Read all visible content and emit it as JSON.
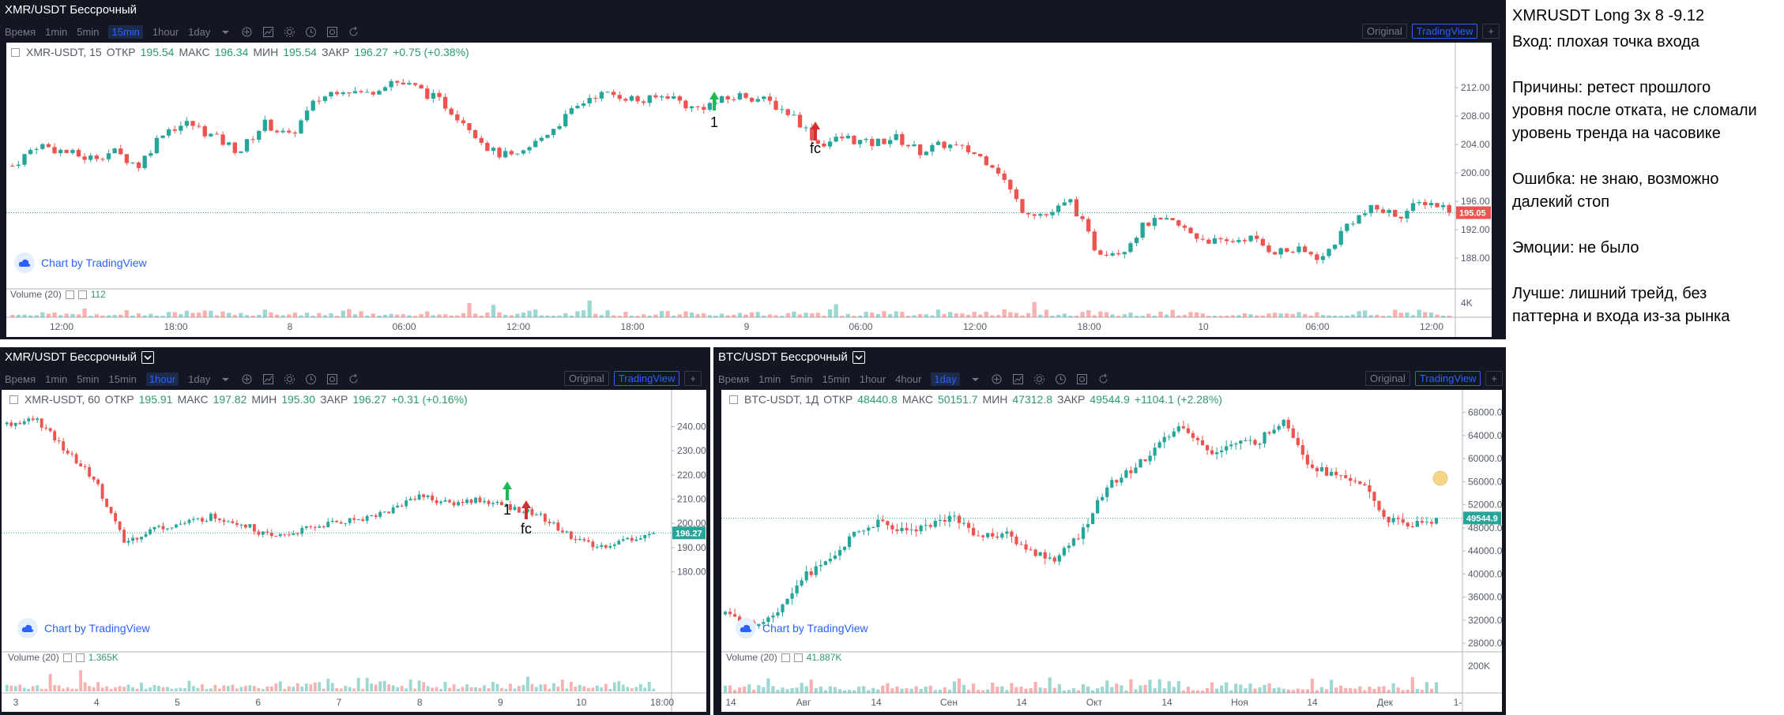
{
  "top_panel": {
    "title": "XMR/USDT Бессрочный",
    "timeframes": [
      {
        "label": "Время",
        "active": false
      },
      {
        "label": "1min",
        "active": false
      },
      {
        "label": "5min",
        "active": false
      },
      {
        "label": "15min",
        "active": true
      },
      {
        "label": "1hour",
        "active": false
      },
      {
        "label": "1day",
        "active": false
      }
    ],
    "view_tabs": [
      "Original",
      "TradingView"
    ],
    "legend": {
      "symbol": "XMR-USDT, 15",
      "open_label": "ОТКР",
      "open": "195.54",
      "high_label": "МАКС",
      "high": "196.34",
      "low_label": "МИН",
      "low": "195.54",
      "close_label": "ЗАКР",
      "close": "196.27",
      "change": "+0.75 (+0.38%)"
    },
    "tv_link": "Chart by TradingView",
    "volume": {
      "label": "Volume (20)",
      "value": "112",
      "scale_label": "4K"
    },
    "price_tag": "195.05",
    "markers": {
      "entry": "1",
      "exit": "fc"
    }
  },
  "bottom_left_panel": {
    "title": "XMR/USDT Бессрочный",
    "timeframes": [
      {
        "label": "Время",
        "active": false
      },
      {
        "label": "1min",
        "active": false
      },
      {
        "label": "5min",
        "active": false
      },
      {
        "label": "15min",
        "active": false
      },
      {
        "label": "1hour",
        "active": true
      },
      {
        "label": "1day",
        "active": false
      }
    ],
    "view_tabs": [
      "Original",
      "TradingView"
    ],
    "legend": {
      "symbol": "XMR-USDT, 60",
      "open_label": "ОТКР",
      "open": "195.91",
      "high_label": "МАКС",
      "high": "197.82",
      "low_label": "МИН",
      "low": "195.30",
      "close_label": "ЗАКР",
      "close": "196.27",
      "change": "+0.31 (+0.16%)"
    },
    "tv_link": "Chart by TradingView",
    "volume": {
      "label": "Volume (20)",
      "value": "1.365K"
    },
    "price_tag": "196.27",
    "markers": {
      "entry": "1",
      "exit": "fc"
    }
  },
  "bottom_right_panel": {
    "title": "BTC/USDT Бессрочный",
    "timeframes": [
      {
        "label": "Время",
        "active": false
      },
      {
        "label": "1min",
        "active": false
      },
      {
        "label": "5min",
        "active": false
      },
      {
        "label": "15min",
        "active": false
      },
      {
        "label": "1hour",
        "active": false
      },
      {
        "label": "4hour",
        "active": false
      },
      {
        "label": "1day",
        "active": true
      }
    ],
    "view_tabs": [
      "Original",
      "TradingView"
    ],
    "legend": {
      "symbol": "BTC-USDT, 1Д",
      "open_label": "ОТКР",
      "open": "48440.8",
      "high_label": "МАКС",
      "high": "50151.7",
      "low_label": "МИН",
      "low": "47312.8",
      "close_label": "ЗАКР",
      "close": "49544.9",
      "change": "+1104.1 (+2.28%)"
    },
    "tv_link": "Chart by TradingView",
    "volume": {
      "label": "Volume (20)",
      "value": "41.887K",
      "scale_label": "200K"
    },
    "price_tag": "49544.9"
  },
  "notes": {
    "title": "XMRUSDT Long 3x 8 -9.12",
    "entry": "Вход: плохая точка входа",
    "reasons": "Причины: ретест прошлого уровня после отката, не сломали уровень тренда на часовике",
    "reasons_line1": "Причины: ретест прошлого",
    "reasons_line2": "уровня после отката, не сломали",
    "reasons_line3": "уровень тренда на часовике",
    "error_line1": "Ошибка: не знаю, возможно",
    "error_line2": "далекий стоп",
    "emotions": "Эмоции: не было",
    "better_line1": "Лучше:  лишний трейд, без",
    "better_line2": "паттерна и входа из-за рынка"
  },
  "colors": {
    "up": "#26a69a",
    "down": "#ef5350",
    "accent": "#2962ff",
    "panel_bg": "#131722"
  },
  "chart_data": [
    {
      "type": "candlestick",
      "name": "XMR-USDT, 15",
      "y_ticks": [
        "212.00",
        "208.00",
        "204.00",
        "200.00",
        "196.00",
        "192.00",
        "188.00"
      ],
      "ylim": [
        185,
        215
      ],
      "x_ticks": [
        "12:00",
        "18:00",
        "8",
        "06:00",
        "12:00",
        "18:00",
        "9",
        "06:00",
        "12:00",
        "18:00",
        "10",
        "06:00",
        "12:00"
      ],
      "path": [
        201,
        204,
        203,
        202,
        203,
        201,
        206,
        207,
        205,
        203,
        207,
        205,
        210,
        212,
        211,
        213,
        212,
        210,
        207,
        203,
        202,
        205,
        208,
        211,
        211,
        210,
        211,
        209,
        210,
        211,
        210,
        208,
        204,
        205,
        204,
        205,
        203,
        204,
        203,
        201,
        195,
        194,
        196,
        189,
        189,
        193,
        193,
        191,
        190,
        191,
        189,
        189,
        188,
        193,
        195,
        194,
        196,
        195
      ],
      "candles": 240
    },
    {
      "type": "candlestick",
      "name": "XMR-USDT, 60",
      "y_ticks": [
        "240.00",
        "230.00",
        "220.00",
        "210.00",
        "200.00",
        "190.00",
        "180.00"
      ],
      "ylim": [
        172,
        248
      ],
      "x_ticks": [
        "3",
        "4",
        "5",
        "6",
        "7",
        "8",
        "9",
        "10",
        "18:00"
      ],
      "path": [
        241,
        243,
        230,
        218,
        192,
        198,
        200,
        203,
        200,
        194,
        197,
        200,
        202,
        205,
        212,
        208,
        210,
        207,
        204,
        196,
        190,
        193,
        196
      ],
      "candles": 150
    },
    {
      "type": "candlestick",
      "name": "BTC-USDT, 1Д",
      "y_ticks": [
        "68000.0",
        "64000.0",
        "60000.0",
        "56000.0",
        "52000.0",
        "48000.0",
        "44000.0",
        "40000.0",
        "36000.0",
        "32000.0",
        "28000.0"
      ],
      "ylim": [
        26500,
        70000
      ],
      "x_ticks": [
        "14",
        "Авг",
        "14",
        "Сен",
        "14",
        "Окт",
        "14",
        "Ноя",
        "14",
        "Дек",
        "1-"
      ],
      "path": [
        33000,
        31000,
        33500,
        39500,
        42000,
        46500,
        49000,
        47500,
        48500,
        50000,
        46500,
        47000,
        44000,
        42500,
        47000,
        55000,
        58000,
        62000,
        66000,
        61000,
        62500,
        63000,
        67000,
        59000,
        57000,
        56000,
        49500,
        48500,
        49500
      ],
      "candles": 150
    }
  ]
}
